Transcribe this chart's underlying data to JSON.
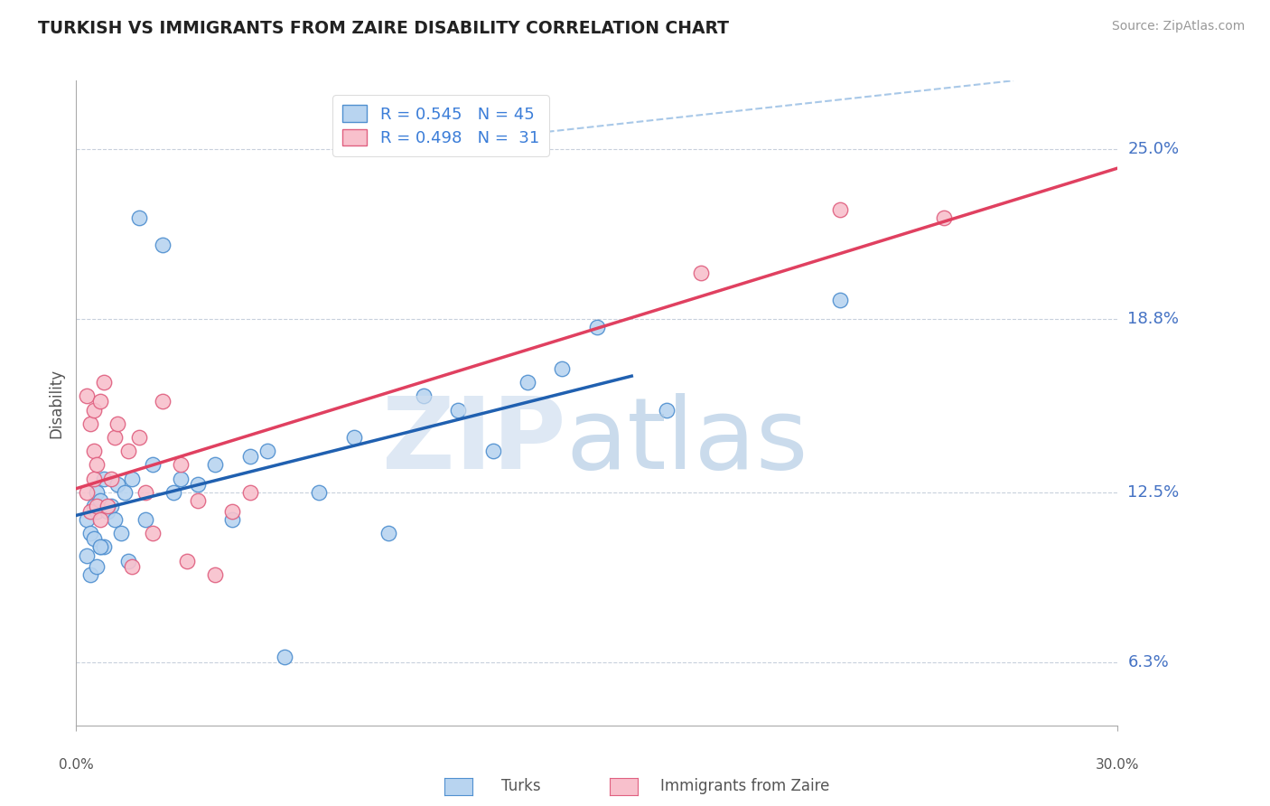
{
  "title": "TURKISH VS IMMIGRANTS FROM ZAIRE DISABILITY CORRELATION CHART",
  "source": "Source: ZipAtlas.com",
  "ylabel": "Disability",
  "xmin": 0.0,
  "xmax": 30.0,
  "ymin": 4.0,
  "ymax": 27.5,
  "yticks": [
    6.3,
    12.5,
    18.8,
    25.0
  ],
  "ytick_labels": [
    "6.3%",
    "12.5%",
    "18.8%",
    "25.0%"
  ],
  "legend_blue_r": "R = 0.545",
  "legend_blue_n": "N = 45",
  "legend_pink_r": "R = 0.498",
  "legend_pink_n": "N =  31",
  "blue_color": "#B8D4F0",
  "pink_color": "#F8C0CC",
  "blue_edge_color": "#5090D0",
  "pink_edge_color": "#E06080",
  "blue_line_color": "#2060B0",
  "pink_line_color": "#E04060",
  "dashed_line_color": "#A8C8E8",
  "turks_scatter_x": [
    0.3,
    0.5,
    0.4,
    0.6,
    0.7,
    0.8,
    0.5,
    0.6,
    0.4,
    0.3,
    0.7,
    0.9,
    1.0,
    0.8,
    1.1,
    1.2,
    0.6,
    0.7,
    1.3,
    1.5,
    1.4,
    1.6,
    1.8,
    2.0,
    2.2,
    2.5,
    2.8,
    3.0,
    3.5,
    4.0,
    4.5,
    5.0,
    5.5,
    6.0,
    7.0,
    8.0,
    9.0,
    10.0,
    11.0,
    12.0,
    13.0,
    14.0,
    15.0,
    17.0,
    22.0
  ],
  "turks_scatter_y": [
    11.5,
    12.0,
    11.0,
    12.5,
    10.5,
    13.0,
    10.8,
    11.8,
    9.5,
    10.2,
    12.2,
    11.8,
    12.0,
    10.5,
    11.5,
    12.8,
    9.8,
    10.5,
    11.0,
    10.0,
    12.5,
    13.0,
    22.5,
    11.5,
    13.5,
    21.5,
    12.5,
    13.0,
    12.8,
    13.5,
    11.5,
    13.8,
    14.0,
    6.5,
    12.5,
    14.5,
    11.0,
    16.0,
    15.5,
    14.0,
    16.5,
    17.0,
    18.5,
    15.5,
    19.5
  ],
  "zaire_scatter_x": [
    0.3,
    0.4,
    0.5,
    0.6,
    0.7,
    0.5,
    0.6,
    0.4,
    0.3,
    0.5,
    0.7,
    0.8,
    0.9,
    1.0,
    1.1,
    1.2,
    1.5,
    1.8,
    2.0,
    2.5,
    3.0,
    3.5,
    4.5,
    5.0,
    4.0,
    3.2,
    2.2,
    1.6,
    22.0,
    25.0,
    18.0
  ],
  "zaire_scatter_y": [
    12.5,
    11.8,
    13.0,
    12.0,
    11.5,
    14.0,
    13.5,
    15.0,
    16.0,
    15.5,
    15.8,
    16.5,
    12.0,
    13.0,
    14.5,
    15.0,
    14.0,
    14.5,
    12.5,
    15.8,
    13.5,
    12.2,
    11.8,
    12.5,
    9.5,
    10.0,
    11.0,
    9.8,
    22.8,
    22.5,
    20.5
  ],
  "blue_trendline_x0": 0.0,
  "blue_trendline_y0": 9.8,
  "blue_trendline_x1": 16.0,
  "blue_trendline_y1": 20.0,
  "pink_trendline_x0": 0.0,
  "pink_trendline_y0": 12.5,
  "pink_trendline_x1": 30.0,
  "pink_trendline_y1": 23.5,
  "diag_x0": 9.0,
  "diag_y0": 25.0,
  "diag_x1": 27.0,
  "diag_y1": 25.0
}
